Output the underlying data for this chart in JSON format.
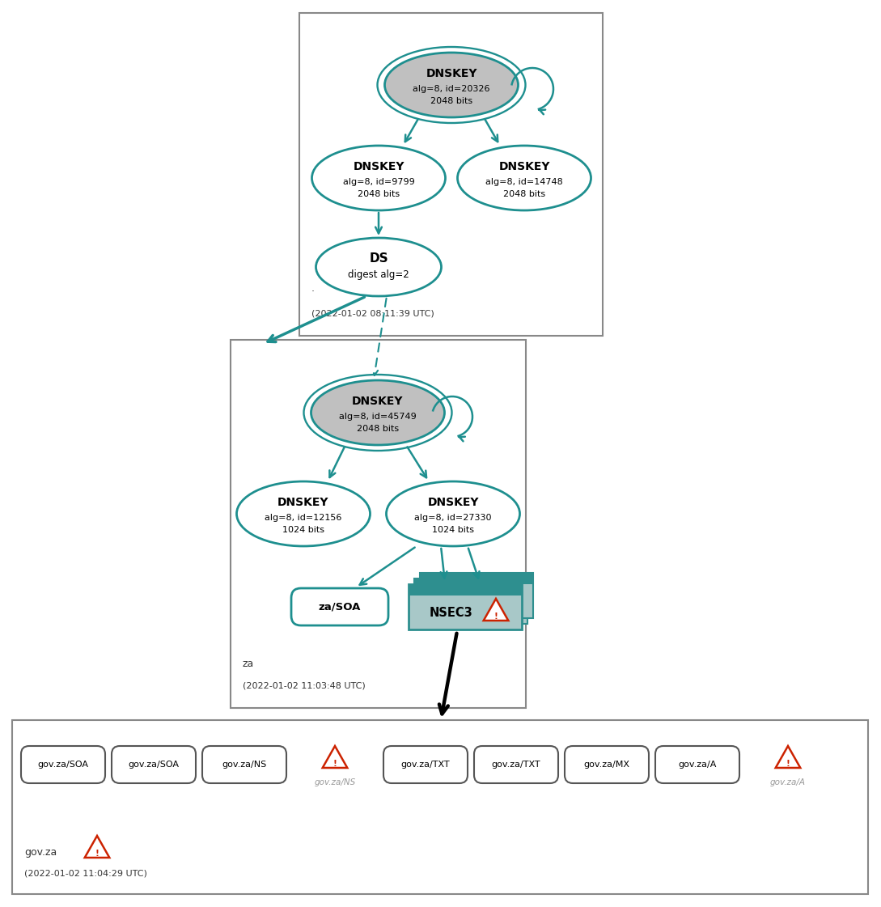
{
  "teal": "#1E8F8F",
  "gray_fill": "#C0C0C0",
  "nsec3_header_color": "#2E8F8F",
  "nsec3_body_color": "#A8C8C8",
  "warning_red": "#CC2200",
  "dot_zone_label": ".",
  "dot_zone_time": "(2022-01-02 08:11:39 UTC)",
  "za_zone_label": "za",
  "za_zone_time": "(2022-01-02 11:03:48 UTC)",
  "govza_zone_label": "gov.za",
  "govza_zone_time": "(2022-01-02 11:04:29 UTC)",
  "ksk1_d1": "alg=8, id=20326",
  "ksk1_d2": "2048 bits",
  "zsk1_d1": "alg=8, id=9799",
  "zsk1_d2": "2048 bits",
  "zsk2_d1": "alg=8, id=14748",
  "zsk2_d2": "2048 bits",
  "ds1_d1": "digest alg=2",
  "ksk2_d1": "alg=8, id=45749",
  "ksk2_d2": "2048 bits",
  "zsk3_d1": "alg=8, id=12156",
  "zsk3_d2": "1024 bits",
  "zsk4_d1": "alg=8, id=27330",
  "zsk4_d2": "1024 bits",
  "govza_box_records": [
    "gov.za/SOA",
    "gov.za/SOA",
    "gov.za/NS",
    "gov.za/TXT",
    "gov.za/TXT",
    "gov.za/MX",
    "gov.za/A"
  ],
  "govza_warn_labels": [
    "gov.za/NS",
    "gov.za/A"
  ]
}
